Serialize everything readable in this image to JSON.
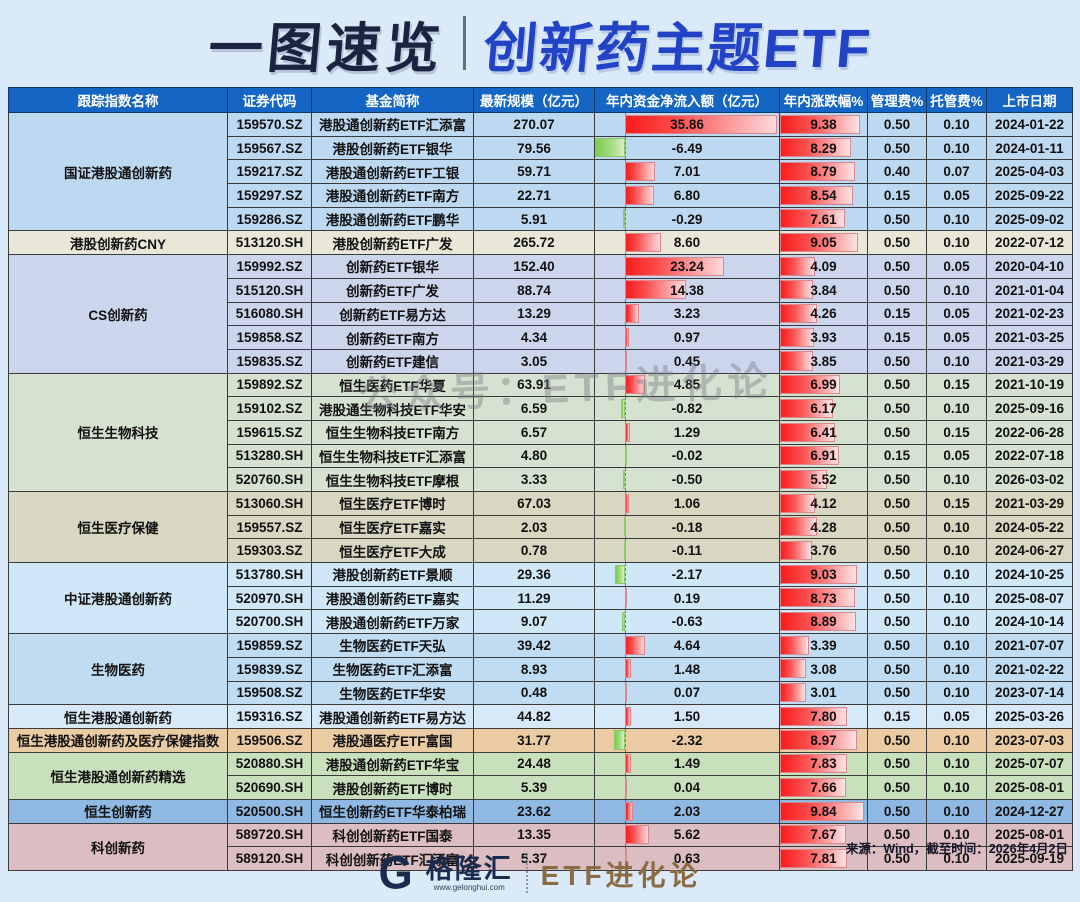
{
  "title": {
    "left": "一图速览",
    "right": "创新药主题ETF"
  },
  "watermark": "公众号：ETF进化论",
  "colors": {
    "page_bg": "#DBEAF9",
    "header_bg": "#1566C4",
    "title_navy": "#1A2340",
    "title_blue": "#2243C6",
    "bar_red": "#F81C1C",
    "bar_green": "#7CCB4F",
    "brand_navy": "#1B2B4D",
    "brand_bronze": "#8A6B42"
  },
  "bars": {
    "axis_ratio": 0.162,
    "inflow_max": 35.86,
    "inflow_min": -6.49,
    "change_max": 9.84
  },
  "table": {
    "headers": [
      "跟踪指数名称",
      "证券代码",
      "基金简称",
      "最新规模（亿元）",
      "年内资金净流入额（亿元）",
      "年内涨跌幅%",
      "管理费%",
      "托管费%",
      "上市日期"
    ],
    "groups": [
      {
        "name": "国证港股通创新药",
        "color": "#BDD9F2",
        "rows": [
          {
            "code": "159570.SZ",
            "fund": "港股通创新药ETF汇添富",
            "scale": "270.07",
            "inflow": "35.86",
            "change": "9.38",
            "mgmt": "0.50",
            "cust": "0.10",
            "date": "2024-01-22"
          },
          {
            "code": "159567.SZ",
            "fund": "港股创新药ETF银华",
            "scale": "79.56",
            "inflow": "-6.49",
            "change": "8.29",
            "mgmt": "0.50",
            "cust": "0.10",
            "date": "2024-01-11"
          },
          {
            "code": "159217.SZ",
            "fund": "港股通创新药ETF工银",
            "scale": "59.71",
            "inflow": "7.01",
            "change": "8.79",
            "mgmt": "0.40",
            "cust": "0.07",
            "date": "2025-04-03"
          },
          {
            "code": "159297.SZ",
            "fund": "港股通创新药ETF南方",
            "scale": "22.71",
            "inflow": "6.80",
            "change": "8.54",
            "mgmt": "0.15",
            "cust": "0.05",
            "date": "2025-09-22"
          },
          {
            "code": "159286.SZ",
            "fund": "港股通创新药ETF鹏华",
            "scale": "5.91",
            "inflow": "-0.29",
            "change": "7.61",
            "mgmt": "0.50",
            "cust": "0.10",
            "date": "2025-09-02"
          }
        ]
      },
      {
        "name": "港股创新药CNY",
        "color": "#E9E7D8",
        "rows": [
          {
            "code": "513120.SH",
            "fund": "港股创新药ETF广发",
            "scale": "265.72",
            "inflow": "8.60",
            "change": "9.05",
            "mgmt": "0.50",
            "cust": "0.10",
            "date": "2022-07-12"
          }
        ]
      },
      {
        "name": "CS创新药",
        "color": "#CBD5EB",
        "rows": [
          {
            "code": "159992.SZ",
            "fund": "创新药ETF银华",
            "scale": "152.40",
            "inflow": "23.24",
            "change": "4.09",
            "mgmt": "0.50",
            "cust": "0.05",
            "date": "2020-04-10"
          },
          {
            "code": "515120.SH",
            "fund": "创新药ETF广发",
            "scale": "88.74",
            "inflow": "14.38",
            "change": "3.84",
            "mgmt": "0.50",
            "cust": "0.10",
            "date": "2021-01-04"
          },
          {
            "code": "516080.SH",
            "fund": "创新药ETF易方达",
            "scale": "13.29",
            "inflow": "3.23",
            "change": "4.26",
            "mgmt": "0.15",
            "cust": "0.05",
            "date": "2021-02-23"
          },
          {
            "code": "159858.SZ",
            "fund": "创新药ETF南方",
            "scale": "4.34",
            "inflow": "0.97",
            "change": "3.93",
            "mgmt": "0.15",
            "cust": "0.05",
            "date": "2021-03-25"
          },
          {
            "code": "159835.SZ",
            "fund": "创新药ETF建信",
            "scale": "3.05",
            "inflow": "0.45",
            "change": "3.85",
            "mgmt": "0.50",
            "cust": "0.10",
            "date": "2021-03-29"
          }
        ]
      },
      {
        "name": "恒生生物科技",
        "color": "#D6E2D0",
        "rows": [
          {
            "code": "159892.SZ",
            "fund": "恒生医药ETF华夏",
            "scale": "63.91",
            "inflow": "4.85",
            "change": "6.99",
            "mgmt": "0.50",
            "cust": "0.15",
            "date": "2021-10-19"
          },
          {
            "code": "159102.SZ",
            "fund": "港股通生物科技ETF华安",
            "scale": "6.59",
            "inflow": "-0.82",
            "change": "6.17",
            "mgmt": "0.50",
            "cust": "0.10",
            "date": "2025-09-16"
          },
          {
            "code": "159615.SZ",
            "fund": "恒生生物科技ETF南方",
            "scale": "6.57",
            "inflow": "1.29",
            "change": "6.41",
            "mgmt": "0.50",
            "cust": "0.15",
            "date": "2022-06-28"
          },
          {
            "code": "513280.SH",
            "fund": "恒生生物科技ETF汇添富",
            "scale": "4.80",
            "inflow": "-0.02",
            "change": "6.91",
            "mgmt": "0.15",
            "cust": "0.05",
            "date": "2022-07-18"
          },
          {
            "code": "520760.SH",
            "fund": "恒生生物科技ETF摩根",
            "scale": "3.33",
            "inflow": "-0.50",
            "change": "5.52",
            "mgmt": "0.50",
            "cust": "0.10",
            "date": "2026-03-02"
          }
        ]
      },
      {
        "name": "恒生医疗保健",
        "color": "#D8D7C2",
        "rows": [
          {
            "code": "513060.SH",
            "fund": "恒生医疗ETF博时",
            "scale": "67.03",
            "inflow": "1.06",
            "change": "4.12",
            "mgmt": "0.50",
            "cust": "0.15",
            "date": "2021-03-29"
          },
          {
            "code": "159557.SZ",
            "fund": "恒生医疗ETF嘉实",
            "scale": "2.03",
            "inflow": "-0.18",
            "change": "4.28",
            "mgmt": "0.50",
            "cust": "0.10",
            "date": "2024-05-22"
          },
          {
            "code": "159303.SZ",
            "fund": "恒生医疗ETF大成",
            "scale": "0.78",
            "inflow": "-0.11",
            "change": "3.76",
            "mgmt": "0.50",
            "cust": "0.10",
            "date": "2024-06-27"
          }
        ]
      },
      {
        "name": "中证港股通创新药",
        "color": "#CFE7F7",
        "rows": [
          {
            "code": "513780.SH",
            "fund": "港股创新药ETF景顺",
            "scale": "29.36",
            "inflow": "-2.17",
            "change": "9.03",
            "mgmt": "0.50",
            "cust": "0.10",
            "date": "2024-10-25"
          },
          {
            "code": "520970.SH",
            "fund": "港股通创新药ETF嘉实",
            "scale": "11.29",
            "inflow": "0.19",
            "change": "8.73",
            "mgmt": "0.50",
            "cust": "0.10",
            "date": "2025-08-07"
          },
          {
            "code": "520700.SH",
            "fund": "港股通创新药ETF万家",
            "scale": "9.07",
            "inflow": "-0.63",
            "change": "8.89",
            "mgmt": "0.50",
            "cust": "0.10",
            "date": "2024-10-14"
          }
        ]
      },
      {
        "name": "生物医药",
        "color": "#BFDCF2",
        "rows": [
          {
            "code": "159859.SZ",
            "fund": "生物医药ETF天弘",
            "scale": "39.42",
            "inflow": "4.64",
            "change": "3.39",
            "mgmt": "0.50",
            "cust": "0.10",
            "date": "2021-07-07"
          },
          {
            "code": "159839.SZ",
            "fund": "生物医药ETF汇添富",
            "scale": "8.93",
            "inflow": "1.48",
            "change": "3.08",
            "mgmt": "0.50",
            "cust": "0.10",
            "date": "2021-02-22"
          },
          {
            "code": "159508.SZ",
            "fund": "生物医药ETF华安",
            "scale": "0.48",
            "inflow": "0.07",
            "change": "3.01",
            "mgmt": "0.50",
            "cust": "0.10",
            "date": "2023-07-14"
          }
        ]
      },
      {
        "name": "恒生港股通创新药",
        "color": "#D7E9F8",
        "rows": [
          {
            "code": "159316.SZ",
            "fund": "港股通创新药ETF易方达",
            "scale": "44.82",
            "inflow": "1.50",
            "change": "7.80",
            "mgmt": "0.15",
            "cust": "0.05",
            "date": "2025-03-26"
          }
        ]
      },
      {
        "name": "恒生港股通创新药及医疗保健指数",
        "color": "#EBCBA4",
        "rows": [
          {
            "code": "159506.SZ",
            "fund": "港股通医疗ETF富国",
            "scale": "31.77",
            "inflow": "-2.32",
            "change": "8.97",
            "mgmt": "0.50",
            "cust": "0.10",
            "date": "2023-07-03"
          }
        ]
      },
      {
        "name": "恒生港股通创新药精选",
        "color": "#C9E0BC",
        "rows": [
          {
            "code": "520880.SH",
            "fund": "港股通创新药ETF华宝",
            "scale": "24.48",
            "inflow": "1.49",
            "change": "7.83",
            "mgmt": "0.50",
            "cust": "0.10",
            "date": "2025-07-07"
          },
          {
            "code": "520690.SH",
            "fund": "港股创新药ETF博时",
            "scale": "5.39",
            "inflow": "0.04",
            "change": "7.66",
            "mgmt": "0.50",
            "cust": "0.10",
            "date": "2025-08-01"
          }
        ]
      },
      {
        "name": "恒生创新药",
        "color": "#8FB9E2",
        "rows": [
          {
            "code": "520500.SH",
            "fund": "恒生创新药ETF华泰柏瑞",
            "scale": "23.62",
            "inflow": "2.03",
            "change": "9.84",
            "mgmt": "0.50",
            "cust": "0.10",
            "date": "2024-12-27"
          }
        ]
      },
      {
        "name": "科创新药",
        "color": "#DCBDC1",
        "rows": [
          {
            "code": "589720.SH",
            "fund": "科创创新药ETF国泰",
            "scale": "13.35",
            "inflow": "5.62",
            "change": "7.67",
            "mgmt": "0.50",
            "cust": "0.10",
            "date": "2025-08-01"
          },
          {
            "code": "589120.SH",
            "fund": "科创创新药ETF汇添富",
            "scale": "5.37",
            "inflow": "0.63",
            "change": "7.81",
            "mgmt": "0.50",
            "cust": "0.10",
            "date": "2025-09-19"
          }
        ]
      }
    ]
  },
  "footer": {
    "source": "来源：Wind，截至时间：2026年4月2日",
    "brand_g": "G",
    "brand_name": "格隆汇",
    "brand_url": "www.gelonghui.com",
    "brand_right": "ETF进化论"
  },
  "chart_data": {
    "type": "table",
    "title": "一图速览 创新药主题ETF",
    "columns": [
      "跟踪指数名称",
      "证券代码",
      "基金简称",
      "最新规模（亿元）",
      "年内资金净流入额（亿元）",
      "年内涨跌幅%",
      "管理费%",
      "托管费%",
      "上市日期"
    ],
    "rows": [
      [
        "国证港股通创新药",
        "159570.SZ",
        "港股通创新药ETF汇添富",
        270.07,
        35.86,
        9.38,
        0.5,
        0.1,
        "2024-01-22"
      ],
      [
        "国证港股通创新药",
        "159567.SZ",
        "港股创新药ETF银华",
        79.56,
        -6.49,
        8.29,
        0.5,
        0.1,
        "2024-01-11"
      ],
      [
        "国证港股通创新药",
        "159217.SZ",
        "港股通创新药ETF工银",
        59.71,
        7.01,
        8.79,
        0.4,
        0.07,
        "2025-04-03"
      ],
      [
        "国证港股通创新药",
        "159297.SZ",
        "港股通创新药ETF南方",
        22.71,
        6.8,
        8.54,
        0.15,
        0.05,
        "2025-09-22"
      ],
      [
        "国证港股通创新药",
        "159286.SZ",
        "港股通创新药ETF鹏华",
        5.91,
        -0.29,
        7.61,
        0.5,
        0.1,
        "2025-09-02"
      ],
      [
        "港股创新药CNY",
        "513120.SH",
        "港股创新药ETF广发",
        265.72,
        8.6,
        9.05,
        0.5,
        0.1,
        "2022-07-12"
      ],
      [
        "CS创新药",
        "159992.SZ",
        "创新药ETF银华",
        152.4,
        23.24,
        4.09,
        0.5,
        0.05,
        "2020-04-10"
      ],
      [
        "CS创新药",
        "515120.SH",
        "创新药ETF广发",
        88.74,
        14.38,
        3.84,
        0.5,
        0.1,
        "2021-01-04"
      ],
      [
        "CS创新药",
        "516080.SH",
        "创新药ETF易方达",
        13.29,
        3.23,
        4.26,
        0.15,
        0.05,
        "2021-02-23"
      ],
      [
        "CS创新药",
        "159858.SZ",
        "创新药ETF南方",
        4.34,
        0.97,
        3.93,
        0.15,
        0.05,
        "2021-03-25"
      ],
      [
        "CS创新药",
        "159835.SZ",
        "创新药ETF建信",
        3.05,
        0.45,
        3.85,
        0.5,
        0.1,
        "2021-03-29"
      ],
      [
        "恒生生物科技",
        "159892.SZ",
        "恒生医药ETF华夏",
        63.91,
        4.85,
        6.99,
        0.5,
        0.15,
        "2021-10-19"
      ],
      [
        "恒生生物科技",
        "159102.SZ",
        "港股通生物科技ETF华安",
        6.59,
        -0.82,
        6.17,
        0.5,
        0.1,
        "2025-09-16"
      ],
      [
        "恒生生物科技",
        "159615.SZ",
        "恒生生物科技ETF南方",
        6.57,
        1.29,
        6.41,
        0.5,
        0.15,
        "2022-06-28"
      ],
      [
        "恒生生物科技",
        "513280.SH",
        "恒生生物科技ETF汇添富",
        4.8,
        -0.02,
        6.91,
        0.15,
        0.05,
        "2022-07-18"
      ],
      [
        "恒生生物科技",
        "520760.SH",
        "恒生生物科技ETF摩根",
        3.33,
        -0.5,
        5.52,
        0.5,
        0.1,
        "2026-03-02"
      ],
      [
        "恒生医疗保健",
        "513060.SH",
        "恒生医疗ETF博时",
        67.03,
        1.06,
        4.12,
        0.5,
        0.15,
        "2021-03-29"
      ],
      [
        "恒生医疗保健",
        "159557.SZ",
        "恒生医疗ETF嘉实",
        2.03,
        -0.18,
        4.28,
        0.5,
        0.1,
        "2024-05-22"
      ],
      [
        "恒生医疗保健",
        "159303.SZ",
        "恒生医疗ETF大成",
        0.78,
        -0.11,
        3.76,
        0.5,
        0.1,
        "2024-06-27"
      ],
      [
        "中证港股通创新药",
        "513780.SH",
        "港股创新药ETF景顺",
        29.36,
        -2.17,
        9.03,
        0.5,
        0.1,
        "2024-10-25"
      ],
      [
        "中证港股通创新药",
        "520970.SH",
        "港股通创新药ETF嘉实",
        11.29,
        0.19,
        8.73,
        0.5,
        0.1,
        "2025-08-07"
      ],
      [
        "中证港股通创新药",
        "520700.SH",
        "港股通创新药ETF万家",
        9.07,
        -0.63,
        8.89,
        0.5,
        0.1,
        "2024-10-14"
      ],
      [
        "生物医药",
        "159859.SZ",
        "生物医药ETF天弘",
        39.42,
        4.64,
        3.39,
        0.5,
        0.1,
        "2021-07-07"
      ],
      [
        "生物医药",
        "159839.SZ",
        "生物医药ETF汇添富",
        8.93,
        1.48,
        3.08,
        0.5,
        0.1,
        "2021-02-22"
      ],
      [
        "生物医药",
        "159508.SZ",
        "生物医药ETF华安",
        0.48,
        0.07,
        3.01,
        0.5,
        0.1,
        "2023-07-14"
      ],
      [
        "恒生港股通创新药",
        "159316.SZ",
        "港股通创新药ETF易方达",
        44.82,
        1.5,
        7.8,
        0.15,
        0.05,
        "2025-03-26"
      ],
      [
        "恒生港股通创新药及医疗保健指数",
        "159506.SZ",
        "港股通医疗ETF富国",
        31.77,
        -2.32,
        8.97,
        0.5,
        0.1,
        "2023-07-03"
      ],
      [
        "恒生港股通创新药精选",
        "520880.SH",
        "港股通创新药ETF华宝",
        24.48,
        1.49,
        7.83,
        0.5,
        0.1,
        "2025-07-07"
      ],
      [
        "恒生港股通创新药精选",
        "520690.SH",
        "港股创新药ETF博时",
        5.39,
        0.04,
        7.66,
        0.5,
        0.1,
        "2025-08-01"
      ],
      [
        "恒生创新药",
        "520500.SH",
        "恒生创新药ETF华泰柏瑞",
        23.62,
        2.03,
        9.84,
        0.5,
        0.1,
        "2024-12-27"
      ],
      [
        "科创新药",
        "589720.SH",
        "科创创新药ETF国泰",
        13.35,
        5.62,
        7.67,
        0.5,
        0.1,
        "2025-08-01"
      ],
      [
        "科创新药",
        "589120.SH",
        "科创创新药ETF汇添富",
        5.37,
        0.63,
        7.81,
        0.5,
        0.1,
        "2025-09-19"
      ]
    ]
  }
}
